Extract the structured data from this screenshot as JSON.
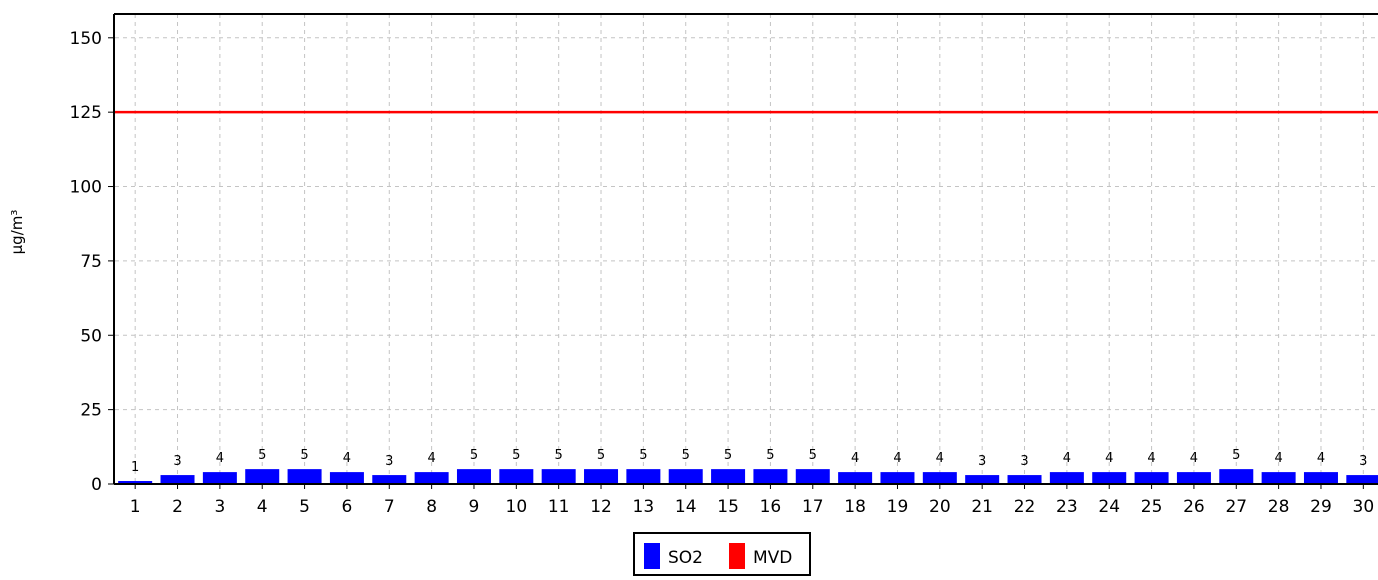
{
  "chart_data": {
    "type": "bar",
    "ylabel": "µg/m³",
    "xlabel": "",
    "categories": [
      "1",
      "2",
      "3",
      "4",
      "5",
      "6",
      "7",
      "8",
      "9",
      "10",
      "11",
      "12",
      "13",
      "14",
      "15",
      "16",
      "17",
      "18",
      "19",
      "20",
      "21",
      "22",
      "23",
      "24",
      "25",
      "26",
      "27",
      "28",
      "29",
      "30"
    ],
    "series": [
      {
        "name": "SO2",
        "color": "#0000ff",
        "values": [
          1,
          3,
          4,
          5,
          5,
          4,
          3,
          4,
          5,
          5,
          5,
          5,
          5,
          5,
          5,
          5,
          5,
          4,
          4,
          4,
          3,
          3,
          4,
          4,
          4,
          4,
          5,
          4,
          4,
          3
        ],
        "labels": [
          "1",
          "3",
          "4",
          "5",
          "5",
          "4",
          "3",
          "4",
          "5",
          "5",
          "5",
          "5",
          "5",
          "5",
          "5",
          "5",
          "5",
          "4",
          "4",
          "4",
          "3",
          "3",
          "4",
          "4",
          "4",
          "4",
          "5",
          "4",
          "4",
          "3"
        ]
      }
    ],
    "reference_lines": [
      {
        "name": "MVD",
        "value": 125,
        "color": "#ff0000"
      }
    ],
    "ylim": [
      0,
      158
    ],
    "yticks": [
      0,
      25,
      50,
      75,
      100,
      125,
      150
    ],
    "ytick_labels": [
      "0",
      "25",
      "50",
      "75",
      "100",
      "125",
      "150"
    ],
    "grid": true,
    "legend": {
      "position": "bottom-center",
      "entries": [
        {
          "label": "SO2",
          "color": "#0000ff"
        },
        {
          "label": "MVD",
          "color": "#ff0000"
        }
      ]
    }
  }
}
